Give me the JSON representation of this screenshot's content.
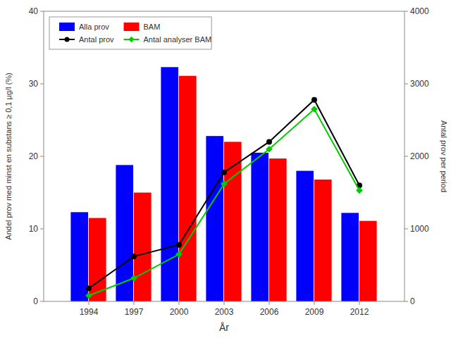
{
  "chart_data": {
    "type": "bar",
    "x": [
      1994,
      1997,
      2000,
      2003,
      2006,
      2009,
      2012
    ],
    "xlabel": "År",
    "ylabel": "Andel prov med minst en substans ≥ 0,1 µg/l (%)",
    "y2label": "Antal prov per period",
    "xlim": [
      1991.0,
      2015.0
    ],
    "xticks": [
      1994,
      1997,
      2000,
      2003,
      2006,
      2009,
      2012
    ],
    "ylim": [
      0,
      40
    ],
    "yticks": [
      0,
      10,
      20,
      30,
      40
    ],
    "y2lim": [
      0,
      4000
    ],
    "y2ticks": [
      0,
      1000,
      2000,
      3000,
      4000
    ],
    "grid": false,
    "legend": "upper left",
    "series": [
      {
        "name": "Alla prov",
        "type": "bar",
        "color": "#0000FF",
        "values": [
          12.3,
          18.8,
          32.3,
          22.8,
          20.5,
          18.0,
          12.2
        ]
      },
      {
        "name": "BAM",
        "type": "bar",
        "color": "#FF0000",
        "values": [
          11.5,
          15.0,
          31.1,
          22.0,
          19.7,
          16.8,
          11.1
        ]
      },
      {
        "name": "Antal prov",
        "type": "line",
        "axis": "y2",
        "color": "#000000",
        "marker": "circle",
        "values": [
          180,
          620,
          780,
          1780,
          2200,
          2780,
          1600
        ]
      },
      {
        "name": "Antal analyser BAM",
        "type": "line",
        "axis": "y2",
        "color": "#00CC00",
        "marker": "diamond",
        "values": [
          80,
          320,
          650,
          1620,
          2100,
          2650,
          1530
        ]
      }
    ]
  }
}
